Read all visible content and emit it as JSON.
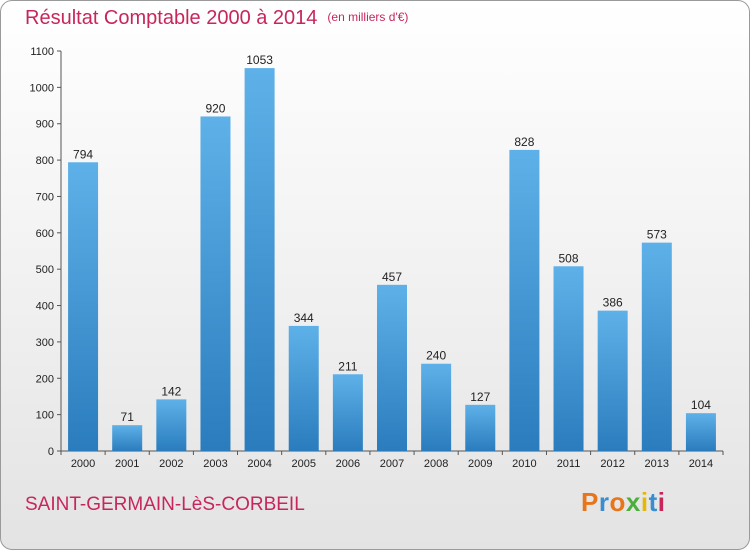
{
  "chart_data": {
    "type": "bar",
    "title": "Résultat Comptable 2000 à 2014",
    "subtitle": "(en milliers d'€)",
    "categories": [
      "2000",
      "2001",
      "2002",
      "2003",
      "2004",
      "2005",
      "2006",
      "2007",
      "2008",
      "2009",
      "2010",
      "2011",
      "2012",
      "2013",
      "2014"
    ],
    "values": [
      794,
      71,
      142,
      920,
      1053,
      344,
      211,
      457,
      240,
      127,
      828,
      508,
      386,
      573,
      104
    ],
    "ylim": [
      0,
      1100
    ],
    "yticks": [
      0,
      100,
      200,
      300,
      400,
      500,
      600,
      700,
      800,
      900,
      1000,
      1100
    ],
    "grid": false,
    "legend": "none",
    "bar_color_top": "#5eb1e8",
    "bar_color_bottom": "#2a7cbd"
  },
  "footer": {
    "place": "SAINT-GERMAIN-LèS-CORBEIL",
    "logo": "Proxiti"
  },
  "colors": {
    "title": "#c8265a",
    "logo_letters": [
      "#e8751a",
      "#3a8ed0",
      "#e8751a",
      "#4caf3c",
      "#e6b800",
      "#3a8ed0",
      "#c8265a"
    ]
  }
}
